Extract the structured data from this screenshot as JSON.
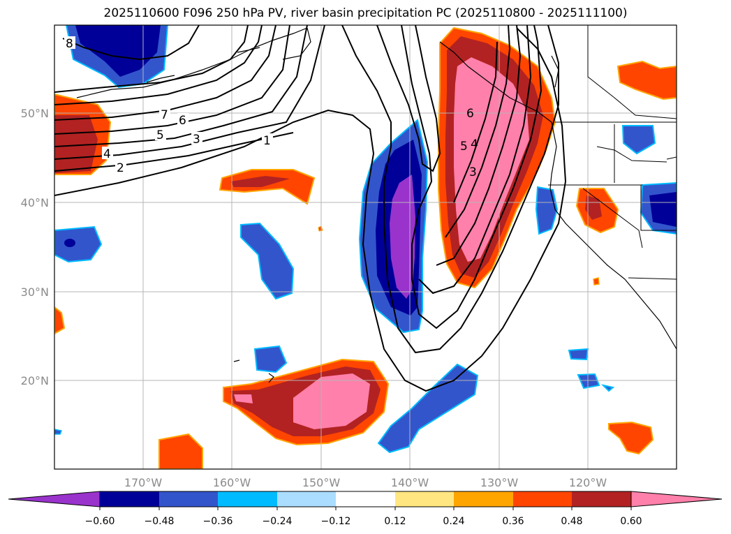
{
  "title": "2025110600 F096 250 hPa PV, river basin precipitation PC (2025110800 - 2025111100)",
  "lat_labels": [
    "50°N",
    "40°N",
    "30°N",
    "20°N"
  ],
  "lon_labels": [
    "170°W",
    "160°W",
    "150°W",
    "140°W",
    "130°W",
    "120°W"
  ],
  "contour_labels": [
    "8",
    "7",
    "6",
    "5",
    "4",
    "3",
    "2",
    "1",
    "6",
    "5",
    "4",
    "3"
  ],
  "colorbar": {
    "ticks": [
      "−0.60",
      "−0.48",
      "−0.36",
      "−0.24",
      "−0.12",
      "0.12",
      "0.24",
      "0.36",
      "0.48",
      "0.60"
    ],
    "colors": [
      "#9933cc",
      "#000099",
      "#3355cc",
      "#00bbff",
      "#aaddff",
      "#ffffff",
      "#ffe680",
      "#ffa500",
      "#ff4500",
      "#b22222",
      "#ff80aa",
      "#ff80aa"
    ]
  }
}
